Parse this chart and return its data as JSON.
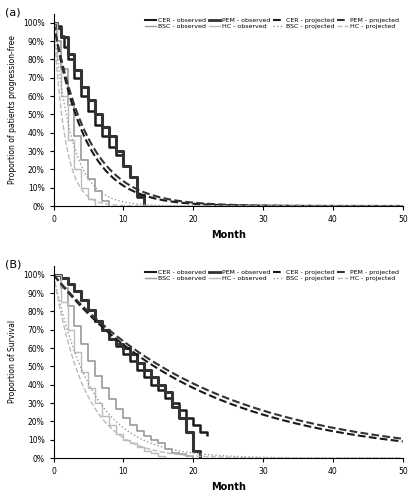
{
  "panel_a_label": "(a)",
  "panel_b_label": "(B)",
  "ylabel_a": "Proportion of patients progression-free",
  "ylabel_b": "Proportion of Survival",
  "xlabel": "Month",
  "colors": {
    "CER": "#1a1a1a",
    "BSC": "#999999",
    "PEM": "#333333",
    "HC": "#bbbbbb"
  },
  "lw": {
    "CER_obs": 1.8,
    "BSC_obs": 1.2,
    "PEM_obs": 2.2,
    "HC_obs": 1.0,
    "CER_proj": 1.5,
    "BSC_proj": 1.0,
    "PEM_proj": 1.5,
    "HC_proj": 1.0
  }
}
